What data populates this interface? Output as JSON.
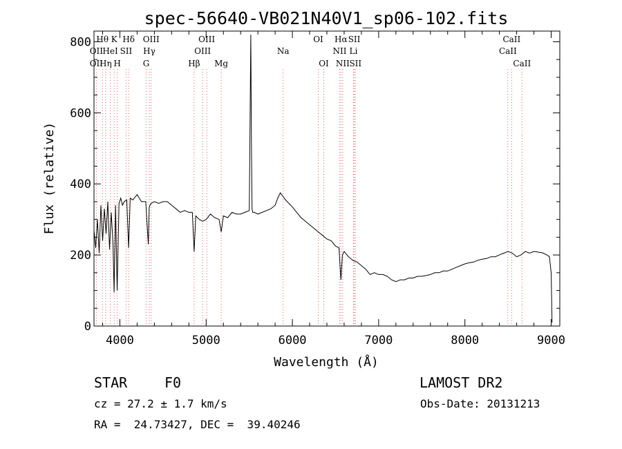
{
  "chart_data": {
    "type": "line",
    "title": "spec-56640-VB021N40V1_sp06-102.fits",
    "xlabel": "Wavelength (Å)",
    "ylabel": "Flux (relative)",
    "xlim": [
      3700,
      9100
    ],
    "ylim": [
      0,
      830
    ],
    "x_ticks": [
      4000,
      5000,
      6000,
      7000,
      8000,
      9000
    ],
    "y_ticks": [
      0,
      200,
      400,
      600,
      800
    ],
    "grid": false,
    "series": [
      {
        "x": [
          3700,
          3720,
          3740,
          3760,
          3780,
          3800,
          3820,
          3840,
          3860,
          3880,
          3900,
          3920,
          3933,
          3950,
          3968,
          3990,
          4010,
          4030,
          4050,
          4080,
          4101,
          4120,
          4150,
          4200,
          4250,
          4300,
          4330,
          4340,
          4360,
          4400,
          4450,
          4500,
          4550,
          4600,
          4650,
          4700,
          4750,
          4800,
          4840,
          4861,
          4880,
          4920,
          4960,
          5000,
          5050,
          5100,
          5150,
          5175,
          5200,
          5250,
          5300,
          5350,
          5400,
          5450,
          5500,
          5518,
          5525,
          5532,
          5540,
          5560,
          5600,
          5650,
          5700,
          5750,
          5800,
          5830,
          5860,
          5890,
          5920,
          5960,
          6000,
          6050,
          6100,
          6150,
          6200,
          6250,
          6300,
          6350,
          6400,
          6450,
          6500,
          6540,
          6563,
          6580,
          6600,
          6650,
          6700,
          6750,
          6800,
          6850,
          6900,
          6950,
          7000,
          7050,
          7100,
          7150,
          7200,
          7250,
          7300,
          7350,
          7400,
          7450,
          7500,
          7550,
          7600,
          7650,
          7700,
          7750,
          7800,
          7850,
          7900,
          7950,
          8000,
          8050,
          8100,
          8150,
          8200,
          8250,
          8300,
          8350,
          8400,
          8450,
          8500,
          8550,
          8600,
          8650,
          8700,
          8750,
          8800,
          8850,
          8900,
          8950,
          8980,
          9000,
          9010
        ],
        "y": [
          270,
          220,
          300,
          205,
          340,
          240,
          330,
          260,
          350,
          215,
          320,
          230,
          95,
          340,
          100,
          345,
          360,
          340,
          350,
          355,
          220,
          360,
          355,
          370,
          350,
          350,
          230,
          335,
          345,
          350,
          345,
          350,
          350,
          340,
          330,
          320,
          325,
          320,
          320,
          210,
          310,
          300,
          295,
          300,
          315,
          305,
          300,
          265,
          310,
          305,
          320,
          315,
          315,
          320,
          325,
          820,
          520,
          330,
          320,
          320,
          315,
          320,
          325,
          330,
          340,
          360,
          375,
          365,
          355,
          345,
          335,
          320,
          305,
          295,
          285,
          275,
          265,
          255,
          245,
          240,
          225,
          220,
          130,
          200,
          210,
          195,
          185,
          180,
          170,
          160,
          145,
          150,
          145,
          145,
          140,
          130,
          125,
          130,
          130,
          135,
          135,
          140,
          140,
          142,
          145,
          150,
          150,
          155,
          155,
          160,
          165,
          170,
          175,
          178,
          180,
          185,
          188,
          190,
          195,
          195,
          200,
          205,
          210,
          205,
          195,
          200,
          210,
          205,
          210,
          208,
          206,
          200,
          195,
          150,
          10
        ],
        "line_labels": [
          {
            "text": "Hθ",
            "x": 3798,
            "row": 1
          },
          {
            "text": "K",
            "x": 3934,
            "row": 1
          },
          {
            "text": "Hδ",
            "x": 4102,
            "row": 1
          },
          {
            "text": "OIII",
            "x": 4363,
            "row": 1
          },
          {
            "text": "OIII",
            "x": 5007,
            "row": 1
          },
          {
            "text": "OI",
            "x": 6300,
            "row": 1
          },
          {
            "text": "Hα",
            "x": 6563,
            "row": 1
          },
          {
            "text": "SII",
            "x": 6717,
            "row": 1
          },
          {
            "text": "CaII",
            "x": 8542,
            "row": 1
          },
          {
            "text": "OII",
            "x": 3727,
            "row": 2
          },
          {
            "text": "HeI",
            "x": 3889,
            "row": 2
          },
          {
            "text": "SII",
            "x": 4072,
            "row": 2
          },
          {
            "text": "Hγ",
            "x": 4341,
            "row": 2
          },
          {
            "text": "OIII",
            "x": 4959,
            "row": 2
          },
          {
            "text": "Na",
            "x": 5893,
            "row": 2
          },
          {
            "text": "NII",
            "x": 6548,
            "row": 2
          },
          {
            "text": "Li",
            "x": 6708,
            "row": 2
          },
          {
            "text": "CaII",
            "x": 8498,
            "row": 2
          },
          {
            "text": "OII",
            "x": 3727,
            "row": 3
          },
          {
            "text": "Hη",
            "x": 3835,
            "row": 3
          },
          {
            "text": "H",
            "x": 3969,
            "row": 3
          },
          {
            "text": "G",
            "x": 4305,
            "row": 3
          },
          {
            "text": "Hβ",
            "x": 4861,
            "row": 3
          },
          {
            "text": "Mg",
            "x": 5175,
            "row": 3
          },
          {
            "text": "OI",
            "x": 6364,
            "row": 3
          },
          {
            "text": "NII",
            "x": 6583,
            "row": 3
          },
          {
            "text": "SII",
            "x": 6731,
            "row": 3
          },
          {
            "text": "CaII",
            "x": 8662,
            "row": 3
          }
        ],
        "line_positions": [
          3727,
          3798,
          3835,
          3889,
          3934,
          3969,
          4072,
          4102,
          4305,
          4341,
          4363,
          4861,
          4959,
          5007,
          5175,
          5893,
          6300,
          6364,
          6548,
          6563,
          6583,
          6708,
          6717,
          6731,
          8498,
          8542,
          8662
        ]
      }
    ]
  },
  "info": {
    "object_class": "STAR",
    "subclass": "F0",
    "survey": "LAMOST DR2",
    "cz": "cz = 27.2 ± 1.7 km/s",
    "obs_date": "Obs-Date: 20131213",
    "coords": "RA =  24.73427, DEC =  39.40246"
  },
  "colors": {
    "axis": "#000000",
    "spectrum": "#000000",
    "line_markers": "#e06060"
  }
}
